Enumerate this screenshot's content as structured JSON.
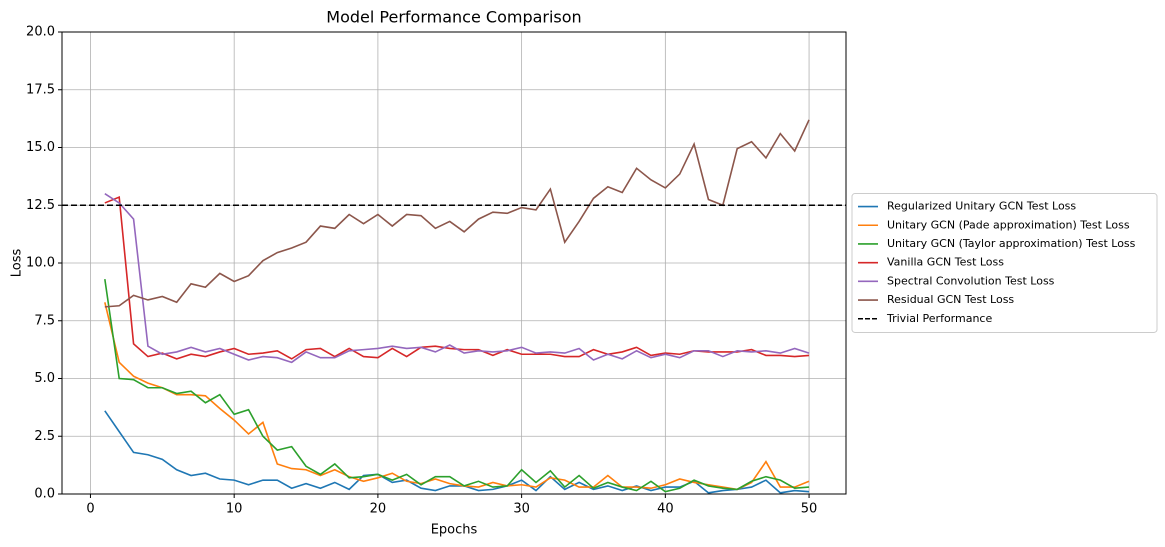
{
  "chart_data": {
    "type": "line",
    "title": "Model Performance Comparison",
    "xlabel": "Epochs",
    "ylabel": "Loss",
    "x": [
      1,
      2,
      3,
      4,
      5,
      6,
      7,
      8,
      9,
      10,
      11,
      12,
      13,
      14,
      15,
      16,
      17,
      18,
      19,
      20,
      21,
      22,
      23,
      24,
      25,
      26,
      27,
      28,
      29,
      30,
      31,
      32,
      33,
      34,
      35,
      36,
      37,
      38,
      39,
      40,
      41,
      42,
      43,
      44,
      45,
      46,
      47,
      48,
      49,
      50
    ],
    "series": [
      {
        "name": "Regularized Unitary GCN Test Loss",
        "color": "#1f77b4",
        "values": [
          3.6,
          2.7,
          1.8,
          1.7,
          1.5,
          1.05,
          0.8,
          0.9,
          0.65,
          0.6,
          0.4,
          0.6,
          0.6,
          0.25,
          0.45,
          0.25,
          0.5,
          0.2,
          0.8,
          0.85,
          0.5,
          0.6,
          0.25,
          0.15,
          0.35,
          0.35,
          0.15,
          0.2,
          0.35,
          0.6,
          0.15,
          0.75,
          0.2,
          0.5,
          0.2,
          0.35,
          0.15,
          0.35,
          0.15,
          0.3,
          0.3,
          0.55,
          0.05,
          0.15,
          0.2,
          0.3,
          0.6,
          0.05,
          0.15,
          0.1
        ]
      },
      {
        "name": "Unitary GCN (Pade approximation) Test Loss",
        "color": "#ff7f0e",
        "values": [
          8.3,
          5.7,
          5.1,
          4.8,
          4.6,
          4.3,
          4.3,
          4.25,
          3.7,
          3.2,
          2.6,
          3.1,
          1.3,
          1.1,
          1.05,
          0.8,
          1.05,
          0.75,
          0.55,
          0.7,
          0.9,
          0.55,
          0.45,
          0.65,
          0.45,
          0.35,
          0.3,
          0.5,
          0.35,
          0.4,
          0.3,
          0.7,
          0.6,
          0.3,
          0.3,
          0.8,
          0.3,
          0.3,
          0.25,
          0.4,
          0.65,
          0.5,
          0.4,
          0.3,
          0.2,
          0.5,
          1.4,
          0.3,
          0.3,
          0.55
        ]
      },
      {
        "name": "Unitary GCN (Taylor approximation) Test Loss",
        "color": "#2ca02c",
        "values": [
          9.3,
          5.0,
          4.95,
          4.6,
          4.6,
          4.35,
          4.45,
          3.95,
          4.3,
          3.45,
          3.65,
          2.5,
          1.9,
          2.05,
          1.2,
          0.85,
          1.3,
          0.7,
          0.75,
          0.85,
          0.6,
          0.85,
          0.4,
          0.75,
          0.75,
          0.35,
          0.55,
          0.3,
          0.35,
          1.05,
          0.5,
          1.0,
          0.3,
          0.8,
          0.25,
          0.5,
          0.3,
          0.15,
          0.55,
          0.1,
          0.25,
          0.6,
          0.35,
          0.25,
          0.2,
          0.55,
          0.75,
          0.6,
          0.25,
          0.3
        ]
      },
      {
        "name": "Vanilla GCN Test Loss",
        "color": "#d62728",
        "values": [
          12.6,
          12.85,
          6.5,
          5.95,
          6.1,
          5.85,
          6.05,
          5.95,
          6.15,
          6.3,
          6.05,
          6.1,
          6.2,
          5.85,
          6.25,
          6.3,
          5.95,
          6.3,
          5.95,
          5.9,
          6.3,
          5.95,
          6.35,
          6.4,
          6.3,
          6.25,
          6.25,
          6.0,
          6.25,
          6.05,
          6.05,
          6.05,
          5.95,
          5.95,
          6.25,
          6.05,
          6.15,
          6.35,
          6.0,
          6.1,
          6.05,
          6.2,
          6.15,
          6.15,
          6.15,
          6.25,
          6.0,
          6.0,
          5.95,
          6.0
        ]
      },
      {
        "name": "Spectral Convolution Test Loss",
        "color": "#9467bd",
        "values": [
          13.0,
          12.6,
          11.9,
          6.4,
          6.05,
          6.15,
          6.35,
          6.15,
          6.3,
          6.05,
          5.8,
          5.95,
          5.9,
          5.7,
          6.15,
          5.9,
          5.9,
          6.2,
          6.25,
          6.3,
          6.4,
          6.3,
          6.35,
          6.15,
          6.45,
          6.1,
          6.2,
          6.15,
          6.2,
          6.35,
          6.1,
          6.15,
          6.1,
          6.3,
          5.8,
          6.05,
          5.85,
          6.2,
          5.9,
          6.05,
          5.9,
          6.2,
          6.2,
          5.95,
          6.2,
          6.15,
          6.2,
          6.1,
          6.3,
          6.1
        ]
      },
      {
        "name": "Residual GCN Test Loss",
        "color": "#8c564b",
        "values": [
          8.1,
          8.15,
          8.6,
          8.4,
          8.55,
          8.3,
          9.1,
          8.95,
          9.55,
          9.2,
          9.45,
          10.1,
          10.45,
          10.65,
          10.9,
          11.6,
          11.5,
          12.1,
          11.7,
          12.1,
          11.6,
          12.1,
          12.05,
          11.5,
          11.8,
          11.35,
          11.9,
          12.2,
          12.15,
          12.4,
          12.3,
          13.2,
          10.9,
          11.8,
          12.8,
          13.3,
          13.05,
          14.1,
          13.6,
          13.25,
          13.85,
          15.15,
          12.75,
          12.5,
          14.95,
          15.25,
          14.55,
          15.6,
          14.85,
          16.2
        ]
      }
    ],
    "reference_line": {
      "name": "Trivial Performance",
      "value": 12.5,
      "color": "#000000",
      "dashed": true
    },
    "xlim": [
      -1.98,
      52.57
    ],
    "xticks": [
      0,
      10,
      20,
      30,
      40,
      50
    ],
    "ylim": [
      0,
      20
    ],
    "yticks": [
      {
        "value": 0,
        "label": "0.0"
      },
      {
        "value": 2.5,
        "label": "2.5"
      },
      {
        "value": 5,
        "label": "5.0"
      },
      {
        "value": 7.5,
        "label": "7.5"
      },
      {
        "value": 10,
        "label": "10.0"
      },
      {
        "value": 12.5,
        "label": "12.5"
      },
      {
        "value": 15,
        "label": "15.0"
      },
      {
        "value": 17.5,
        "label": "17.5"
      },
      {
        "value": 20,
        "label": "20.0"
      }
    ],
    "grid": true,
    "legend_position": "right"
  }
}
